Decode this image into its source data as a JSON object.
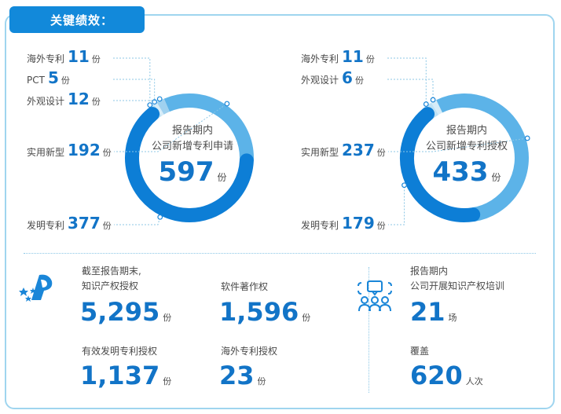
{
  "header": {
    "title": "关键绩效："
  },
  "chart_data": [
    {
      "type": "donut",
      "center": {
        "line1": "报告期内",
        "line2": "公司新增专利申请",
        "value": "597",
        "unit": "份"
      },
      "categories": [
        "海外专利",
        "PCT",
        "外观设计",
        "实用新型",
        "发明专利"
      ],
      "values": [
        11,
        5,
        12,
        192,
        377
      ],
      "unit": "份",
      "total": 597,
      "colors": [
        "#bfe2f5",
        "#d6ecf8",
        "#9fd1ef",
        "#5cb3e8",
        "#0d7ed6"
      ]
    },
    {
      "type": "donut",
      "center": {
        "line1": "报告期内",
        "line2": "公司新增专利授权",
        "value": "433",
        "unit": "份"
      },
      "categories": [
        "海外专利",
        "外观设计",
        "实用新型",
        "发明专利"
      ],
      "values": [
        11,
        6,
        237,
        179
      ],
      "unit": "份",
      "total": 433,
      "colors": [
        "#bfe2f5",
        "#d6ecf8",
        "#5cb3e8",
        "#0d7ed6"
      ]
    }
  ],
  "stats": {
    "ip_total": {
      "line1": "截至报告期末,",
      "line2": "知识产权授权",
      "value": "5,295",
      "unit": "份"
    },
    "software": {
      "label": "软件著作权",
      "value": "1,596",
      "unit": "份"
    },
    "invention_valid": {
      "label": "有效发明专利授权",
      "value": "1,137",
      "unit": "份"
    },
    "overseas": {
      "label": "海外专利授权",
      "value": "23",
      "unit": "份"
    },
    "training": {
      "line1": "报告期内",
      "line2": "公司开展知识产权培训",
      "value": "21",
      "unit": "场"
    },
    "coverage": {
      "label": "覆盖",
      "value": "620",
      "unit": "人次"
    }
  },
  "icons": {
    "ip_logo": "ip-logo-icon",
    "training": "training-people-icon"
  }
}
